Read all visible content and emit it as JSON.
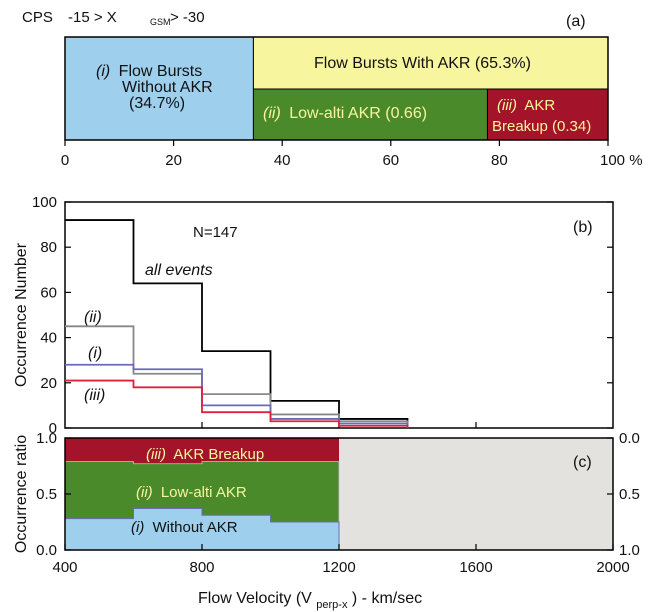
{
  "chart_data": [
    {
      "panel": "(a)",
      "type": "bar",
      "header": {
        "cps": "CPS",
        "range_left": "-15 > X",
        "range_sub": "GSM",
        "range_right": " > -30"
      },
      "segments": [
        {
          "label_num": "(i)",
          "label_line1": "Flow Bursts",
          "label_line2": "Without AKR",
          "label_line3": "(34.7%)",
          "start": 0,
          "end": 34.7,
          "color": "#9ed0ee"
        },
        {
          "label": "Flow Bursts With AKR (65.3%)",
          "start": 34.7,
          "end": 100,
          "color": "#f7f59e"
        },
        {
          "label_num": "(ii)",
          "label": "Low-alti AKR (0.66)",
          "start": 34.7,
          "end": 77.8,
          "color": "#4b8a2a"
        },
        {
          "label_num": "(iii)",
          "label_line1": "AKR",
          "label_line2": "Breakup (0.34)",
          "start": 77.8,
          "end": 100,
          "color": "#a3132a"
        }
      ],
      "xticks": [
        "0",
        "20",
        "40",
        "60",
        "80",
        "100 %"
      ],
      "xlim": [
        0,
        100
      ]
    },
    {
      "panel": "(b)",
      "type": "line",
      "ylabel": "Occurrence Number",
      "ylim": [
        0,
        100
      ],
      "yticks": [
        "0",
        "20",
        "40",
        "60",
        "80",
        "100"
      ],
      "annotation": "N=147",
      "bin_edges": [
        400,
        600,
        800,
        1000,
        1200,
        1400
      ],
      "series": [
        {
          "name": "all events",
          "color": "#000000",
          "values": [
            92,
            64,
            34,
            12,
            4
          ]
        },
        {
          "name": "(ii)",
          "color": "#888888",
          "values": [
            45,
            24,
            15,
            6,
            3
          ]
        },
        {
          "name": "(i)",
          "color": "#6a6ab8",
          "values": [
            28,
            26,
            10,
            4,
            2
          ]
        },
        {
          "name": "(iii)",
          "color": "#e0203a",
          "values": [
            21,
            18,
            7,
            3,
            1
          ]
        }
      ]
    },
    {
      "panel": "(c)",
      "type": "area",
      "ylabel": "Occurrence ratio",
      "xlabel_main": "Flow Velocity (V",
      "xlabel_sub": "perp-x",
      "xlabel_tail": ") - km/sec",
      "xlim": [
        400,
        2000
      ],
      "xticks": [
        "400",
        "800",
        "1200",
        "1600",
        "2000"
      ],
      "yticks_left": [
        "0.0",
        "0.5",
        "1.0"
      ],
      "yticks_right": [
        "0.0",
        "0.5",
        "1.0"
      ],
      "bin_edges": [
        400,
        600,
        800,
        1000,
        1200
      ],
      "without_akr": [
        0.28,
        0.37,
        0.31,
        0.25
      ],
      "low_alti_top": [
        0.79,
        0.77,
        0.79,
        0.79
      ],
      "layers": [
        {
          "label_num": "(i)",
          "label": "Without AKR",
          "color": "#9ed0ee"
        },
        {
          "label_num": "(ii)",
          "label": "Low-alti AKR",
          "color": "#4b8a2a"
        },
        {
          "label_num": "(iii)",
          "label": "AKR Breakup",
          "color": "#a3132a"
        }
      ],
      "empty_color": "#e4e2de"
    }
  ],
  "panel_labels": {
    "a": "(a)",
    "b": "(b)",
    "c": "(c)"
  }
}
